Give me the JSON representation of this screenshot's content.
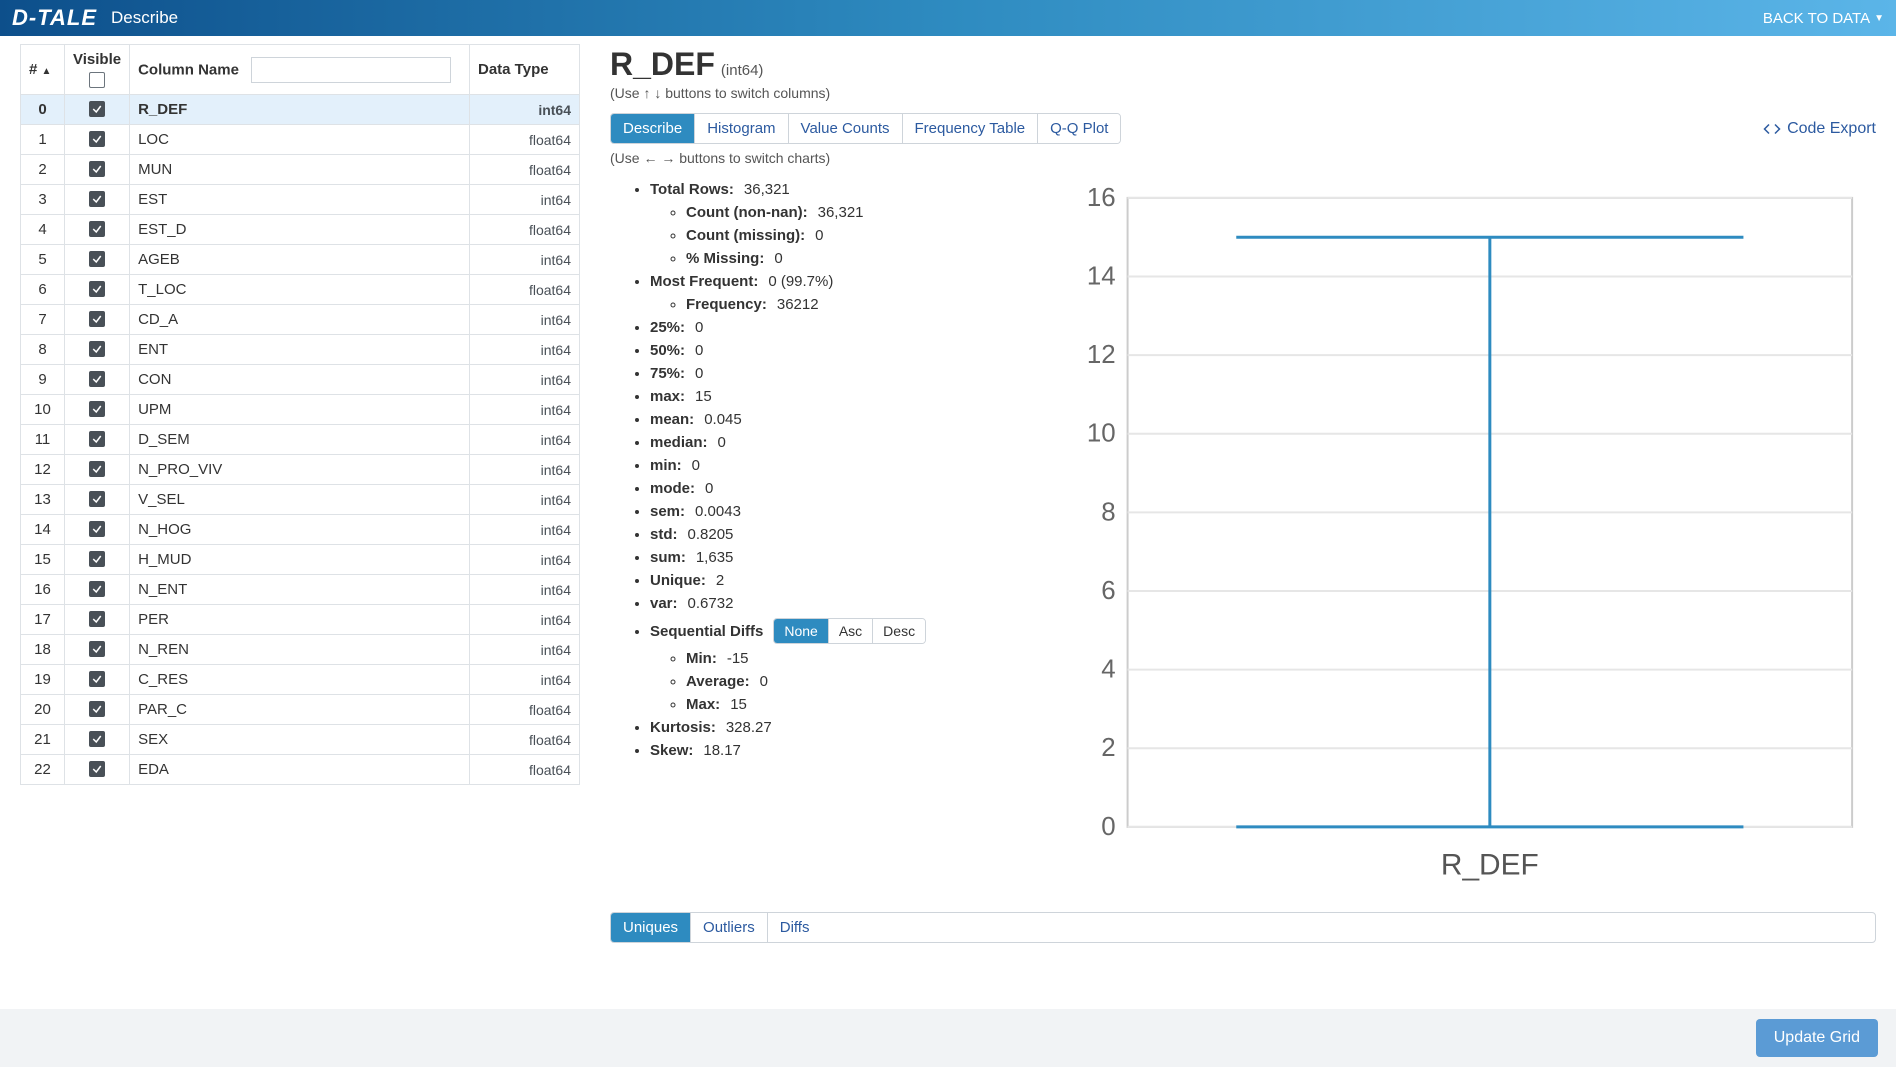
{
  "header": {
    "logo": "D-TALE",
    "title": "Describe",
    "back": "BACK TO DATA"
  },
  "table_header": {
    "idx": "#",
    "visible": "Visible",
    "col_name": "Column Name",
    "data_type": "Data Type",
    "filter_placeholder": ""
  },
  "columns": [
    {
      "idx": "0",
      "name": "R_DEF",
      "type": "int64",
      "selected": true
    },
    {
      "idx": "1",
      "name": "LOC",
      "type": "float64"
    },
    {
      "idx": "2",
      "name": "MUN",
      "type": "float64"
    },
    {
      "idx": "3",
      "name": "EST",
      "type": "int64"
    },
    {
      "idx": "4",
      "name": "EST_D",
      "type": "float64"
    },
    {
      "idx": "5",
      "name": "AGEB",
      "type": "int64"
    },
    {
      "idx": "6",
      "name": "T_LOC",
      "type": "float64"
    },
    {
      "idx": "7",
      "name": "CD_A",
      "type": "int64"
    },
    {
      "idx": "8",
      "name": "ENT",
      "type": "int64"
    },
    {
      "idx": "9",
      "name": "CON",
      "type": "int64"
    },
    {
      "idx": "10",
      "name": "UPM",
      "type": "int64"
    },
    {
      "idx": "11",
      "name": "D_SEM",
      "type": "int64"
    },
    {
      "idx": "12",
      "name": "N_PRO_VIV",
      "type": "int64"
    },
    {
      "idx": "13",
      "name": "V_SEL",
      "type": "int64"
    },
    {
      "idx": "14",
      "name": "N_HOG",
      "type": "int64"
    },
    {
      "idx": "15",
      "name": "H_MUD",
      "type": "int64"
    },
    {
      "idx": "16",
      "name": "N_ENT",
      "type": "int64"
    },
    {
      "idx": "17",
      "name": "PER",
      "type": "int64"
    },
    {
      "idx": "18",
      "name": "N_REN",
      "type": "int64"
    },
    {
      "idx": "19",
      "name": "C_RES",
      "type": "int64"
    },
    {
      "idx": "20",
      "name": "PAR_C",
      "type": "float64"
    },
    {
      "idx": "21",
      "name": "SEX",
      "type": "float64"
    },
    {
      "idx": "22",
      "name": "EDA",
      "type": "float64"
    }
  ],
  "detail": {
    "name": "R_DEF",
    "type": "(int64)",
    "col_hint": "(Use ↑ ↓ buttons to switch columns)",
    "chart_hint": "(Use ← → buttons to switch charts)",
    "tabs": [
      "Describe",
      "Histogram",
      "Value Counts",
      "Frequency Table",
      "Q-Q Plot"
    ],
    "code_export": "Code Export"
  },
  "stats": {
    "total_rows_label": "Total Rows:",
    "total_rows": "36,321",
    "count_nonnan_label": "Count (non-nan):",
    "count_nonnan": "36,321",
    "count_missing_label": "Count (missing):",
    "count_missing": "0",
    "pct_missing_label": "% Missing:",
    "pct_missing": "0",
    "most_freq_label": "Most Frequent:",
    "most_freq": "0 (99.7%)",
    "frequency_label": "Frequency:",
    "frequency": "36212",
    "p25_label": "25%:",
    "p25": "0",
    "p50_label": "50%:",
    "p50": "0",
    "p75_label": "75%:",
    "p75": "0",
    "max_label": "max:",
    "max": "15",
    "mean_label": "mean:",
    "mean": "0.045",
    "median_label": "median:",
    "median": "0",
    "min_label": "min:",
    "min": "0",
    "mode_label": "mode:",
    "mode": "0",
    "sem_label": "sem:",
    "sem": "0.0043",
    "std_label": "std:",
    "std": "0.8205",
    "sum_label": "sum:",
    "sum": "1,635",
    "unique_label": "Unique:",
    "unique": "2",
    "var_label": "var:",
    "var": "0.6732",
    "seq_label": "Sequential Diffs",
    "seq_opts": [
      "None",
      "Asc",
      "Desc"
    ],
    "seq_min_label": "Min:",
    "seq_min": "-15",
    "seq_avg_label": "Average:",
    "seq_avg": "0",
    "seq_max_label": "Max:",
    "seq_max": "15",
    "kurtosis_label": "Kurtosis:",
    "kurtosis": "328.27",
    "skew_label": "Skew:",
    "skew": "18.17"
  },
  "sub_tabs": [
    "Uniques",
    "Outliers",
    "Diffs"
  ],
  "chart": {
    "type": "boxplot",
    "x_label": "R_DEF",
    "y_ticks": [
      0,
      2,
      4,
      6,
      8,
      10,
      12,
      14,
      16
    ],
    "ylim": [
      0,
      16
    ],
    "whisker_low": 0,
    "q1": 0,
    "median": 0,
    "q3": 0,
    "whisker_high": 15,
    "line_color": "#2e8bc0",
    "grid_color": "#e6e6e6",
    "axis_color": "#cccccc",
    "tick_fontsize": 13,
    "label_fontsize": 15,
    "background_color": "#ffffff"
  },
  "footer": {
    "update": "Update Grid"
  }
}
